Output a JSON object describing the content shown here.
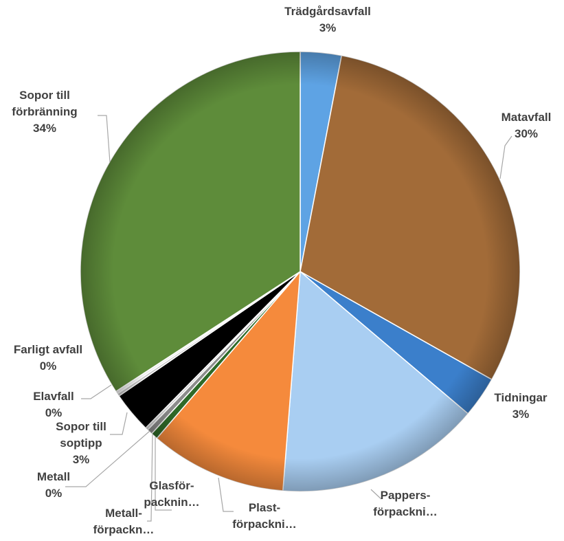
{
  "chart_data": {
    "type": "pie",
    "categories": [
      "Trädgårdsavfall",
      "Matavfall",
      "Tidningar",
      "Pappers-\nförpackni…",
      "Plast-\nförpackni…",
      "Glasför-\npacknin…",
      "Metall-\nförpackn…",
      "Metall",
      "Sopor till\nsoptipp",
      "Elavfall",
      "Farligt avfall",
      "Sopor till\nförbränning"
    ],
    "values": [
      3,
      30,
      3,
      15,
      10,
      0.5,
      0.4,
      0.2,
      3,
      0.2,
      0.2,
      34
    ],
    "value_labels": [
      "3%",
      "30%",
      "3%",
      null,
      null,
      null,
      null,
      "0%",
      "3%",
      "0%",
      "0%",
      "34%"
    ],
    "colors": [
      "#5ea3e4",
      "#a26b38",
      "#3b7fcb",
      "#a9cef2",
      "#f58a3c",
      "#2e6a28",
      "#8c8c8c",
      "#d0d0d0",
      "#000000",
      "#c8c8c8",
      "#eeeeee",
      "#5e8c3a"
    ]
  }
}
